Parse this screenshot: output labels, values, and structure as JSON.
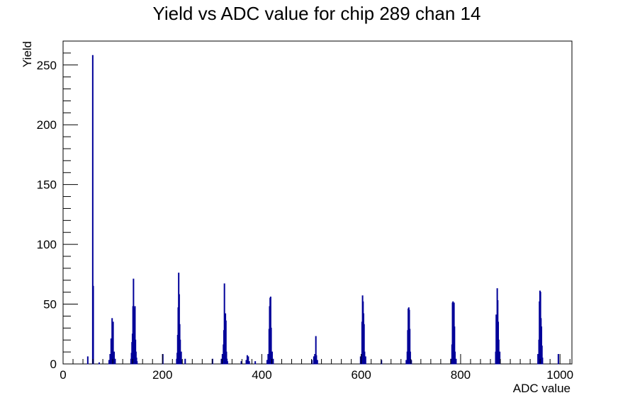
{
  "chart_data": {
    "type": "bar",
    "title": "Yield vs ADC value for chip 289 chan 14",
    "xlabel": "ADC value",
    "ylabel": "Yield",
    "xlim": [
      0,
      1024
    ],
    "ylim": [
      0,
      270
    ],
    "grid": false,
    "legend": "none",
    "x_ticks": [
      "0",
      "200",
      "400",
      "600",
      "800",
      "1000"
    ],
    "y_ticks": [
      "0",
      "50",
      "100",
      "150",
      "200",
      "250"
    ],
    "series_color": "#000099",
    "bins": [
      {
        "x": 49,
        "y": 6
      },
      {
        "x": 59,
        "y": 258
      },
      {
        "x": 60,
        "y": 65
      },
      {
        "x": 72,
        "y": 1
      },
      {
        "x": 92,
        "y": 3
      },
      {
        "x": 94,
        "y": 8
      },
      {
        "x": 96,
        "y": 21
      },
      {
        "x": 97,
        "y": 13
      },
      {
        "x": 98,
        "y": 38
      },
      {
        "x": 99,
        "y": 10
      },
      {
        "x": 100,
        "y": 35
      },
      {
        "x": 102,
        "y": 10
      },
      {
        "x": 104,
        "y": 4
      },
      {
        "x": 136,
        "y": 4
      },
      {
        "x": 137,
        "y": 9
      },
      {
        "x": 138,
        "y": 18
      },
      {
        "x": 139,
        "y": 25
      },
      {
        "x": 140,
        "y": 48
      },
      {
        "x": 141,
        "y": 71
      },
      {
        "x": 142,
        "y": 34
      },
      {
        "x": 143,
        "y": 46
      },
      {
        "x": 144,
        "y": 48
      },
      {
        "x": 145,
        "y": 20
      },
      {
        "x": 146,
        "y": 10
      },
      {
        "x": 147,
        "y": 5
      },
      {
        "x": 148,
        "y": 2
      },
      {
        "x": 200,
        "y": 8
      },
      {
        "x": 228,
        "y": 4
      },
      {
        "x": 229,
        "y": 9
      },
      {
        "x": 230,
        "y": 24
      },
      {
        "x": 231,
        "y": 47
      },
      {
        "x": 232,
        "y": 76
      },
      {
        "x": 233,
        "y": 58
      },
      {
        "x": 234,
        "y": 33
      },
      {
        "x": 235,
        "y": 20
      },
      {
        "x": 236,
        "y": 8
      },
      {
        "x": 237,
        "y": 10
      },
      {
        "x": 238,
        "y": 3
      },
      {
        "x": 245,
        "y": 4
      },
      {
        "x": 300,
        "y": 4
      },
      {
        "x": 318,
        "y": 4
      },
      {
        "x": 320,
        "y": 8
      },
      {
        "x": 322,
        "y": 16
      },
      {
        "x": 323,
        "y": 28
      },
      {
        "x": 324,
        "y": 67
      },
      {
        "x": 325,
        "y": 40
      },
      {
        "x": 326,
        "y": 42
      },
      {
        "x": 327,
        "y": 36
      },
      {
        "x": 328,
        "y": 10
      },
      {
        "x": 329,
        "y": 4
      },
      {
        "x": 330,
        "y": 2
      },
      {
        "x": 358,
        "y": 2
      },
      {
        "x": 368,
        "y": 3
      },
      {
        "x": 370,
        "y": 7
      },
      {
        "x": 372,
        "y": 6
      },
      {
        "x": 374,
        "y": 2
      },
      {
        "x": 386,
        "y": 2
      },
      {
        "x": 410,
        "y": 3
      },
      {
        "x": 412,
        "y": 8
      },
      {
        "x": 414,
        "y": 29
      },
      {
        "x": 415,
        "y": 48
      },
      {
        "x": 416,
        "y": 55
      },
      {
        "x": 417,
        "y": 56
      },
      {
        "x": 418,
        "y": 30
      },
      {
        "x": 420,
        "y": 10
      },
      {
        "x": 422,
        "y": 4
      },
      {
        "x": 500,
        "y": 3
      },
      {
        "x": 504,
        "y": 6
      },
      {
        "x": 506,
        "y": 8
      },
      {
        "x": 508,
        "y": 23
      },
      {
        "x": 509,
        "y": 7
      },
      {
        "x": 511,
        "y": 3
      },
      {
        "x": 598,
        "y": 6
      },
      {
        "x": 600,
        "y": 8
      },
      {
        "x": 601,
        "y": 35
      },
      {
        "x": 602,
        "y": 57
      },
      {
        "x": 603,
        "y": 52
      },
      {
        "x": 604,
        "y": 42
      },
      {
        "x": 605,
        "y": 33
      },
      {
        "x": 606,
        "y": 10
      },
      {
        "x": 608,
        "y": 6
      },
      {
        "x": 640,
        "y": 3
      },
      {
        "x": 690,
        "y": 3
      },
      {
        "x": 692,
        "y": 10
      },
      {
        "x": 693,
        "y": 28
      },
      {
        "x": 694,
        "y": 46
      },
      {
        "x": 695,
        "y": 47
      },
      {
        "x": 696,
        "y": 45
      },
      {
        "x": 697,
        "y": 29
      },
      {
        "x": 698,
        "y": 10
      },
      {
        "x": 700,
        "y": 3
      },
      {
        "x": 780,
        "y": 4
      },
      {
        "x": 782,
        "y": 16
      },
      {
        "x": 783,
        "y": 51
      },
      {
        "x": 784,
        "y": 52
      },
      {
        "x": 785,
        "y": 48
      },
      {
        "x": 786,
        "y": 51
      },
      {
        "x": 787,
        "y": 31
      },
      {
        "x": 788,
        "y": 10
      },
      {
        "x": 790,
        "y": 4
      },
      {
        "x": 870,
        "y": 10
      },
      {
        "x": 871,
        "y": 41
      },
      {
        "x": 872,
        "y": 35
      },
      {
        "x": 873,
        "y": 63
      },
      {
        "x": 874,
        "y": 53
      },
      {
        "x": 875,
        "y": 35
      },
      {
        "x": 876,
        "y": 20
      },
      {
        "x": 878,
        "y": 10
      },
      {
        "x": 955,
        "y": 8
      },
      {
        "x": 957,
        "y": 20
      },
      {
        "x": 958,
        "y": 52
      },
      {
        "x": 959,
        "y": 61
      },
      {
        "x": 960,
        "y": 60
      },
      {
        "x": 961,
        "y": 38
      },
      {
        "x": 962,
        "y": 31
      },
      {
        "x": 963,
        "y": 15
      },
      {
        "x": 964,
        "y": 5
      },
      {
        "x": 996,
        "y": 8
      }
    ]
  }
}
